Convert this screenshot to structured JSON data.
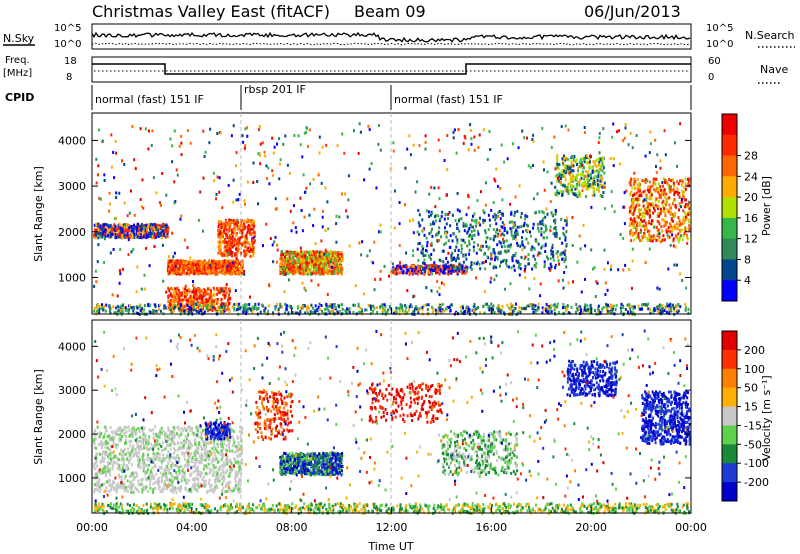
{
  "header": {
    "radar": "Christmas Valley East (fitACF)",
    "beam": "Beam 09",
    "date": "06/Jun/2013"
  },
  "strip": {
    "nsky_label": "N.Sky",
    "nsearch_label": "N.Search",
    "noise_ticks": [
      "10^5",
      "10^0"
    ],
    "freq_label_1": "Freq.",
    "freq_label_2": "[MHz]",
    "freq_ticks": [
      "18",
      "8"
    ],
    "nave_label": "Nave",
    "nave_ticks": [
      "60",
      "0"
    ],
    "cpid_label": "CPID",
    "cpid_segments": [
      {
        "label": "normal (fast) 151 IF",
        "start_hour": 0,
        "end_hour": 6
      },
      {
        "label": "rbsp 201 IF",
        "start_hour": 6,
        "end_hour": 12
      },
      {
        "label": "normal (fast) 151 IF",
        "start_hour": 12,
        "end_hour": 24
      }
    ]
  },
  "chart_data": [
    {
      "type": "heatmap",
      "panel": "power",
      "ylabel": "Slant Range [km]",
      "yticks": [
        "1000",
        "2000",
        "3000",
        "4000"
      ],
      "ylim": [
        200,
        4600
      ],
      "xlim": [
        0,
        24
      ],
      "colorbar": {
        "label": "Power [dB]",
        "ticks": [
          "4",
          "8",
          "12",
          "16",
          "20",
          "24",
          "28"
        ],
        "colors": [
          "#0000ff",
          "#00478c",
          "#2e8b57",
          "#36b74a",
          "#b0e000",
          "#ffaa00",
          "#ff6600",
          "#ff2a00",
          "#ee0000"
        ]
      }
    },
    {
      "type": "heatmap",
      "panel": "velocity",
      "ylabel": "Slant Range [km]",
      "yticks": [
        "1000",
        "2000",
        "3000",
        "4000"
      ],
      "ylim": [
        200,
        4600
      ],
      "xlim": [
        0,
        24
      ],
      "xlabel": "Time UT",
      "xticks": [
        "00:00",
        "04:00",
        "08:00",
        "12:00",
        "16:00",
        "20:00",
        "00:00"
      ],
      "colorbar": {
        "label": "Velocity [m s⁻¹]",
        "ticks": [
          "200",
          "100",
          "50",
          "15",
          "-15",
          "-50",
          "-100",
          "-200"
        ],
        "colors": [
          "#0000cd",
          "#1f3bd6",
          "#1a8a3a",
          "#5fd24d",
          "#c8c8c8",
          "#ffb000",
          "#ff7f00",
          "#ff3000",
          "#e00000"
        ]
      }
    }
  ]
}
